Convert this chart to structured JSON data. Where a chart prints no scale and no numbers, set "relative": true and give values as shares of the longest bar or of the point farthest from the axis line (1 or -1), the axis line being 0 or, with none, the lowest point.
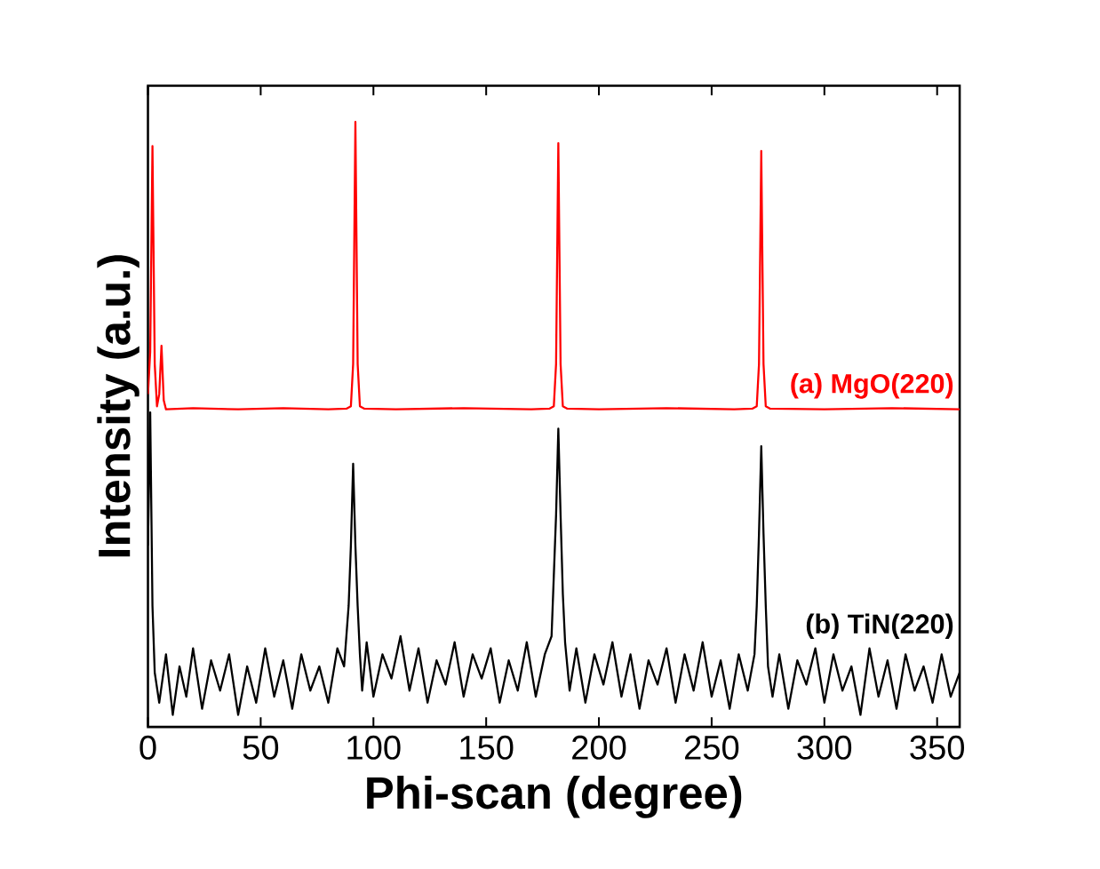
{
  "chart_data": {
    "type": "line",
    "relative": true,
    "xlabel": "Phi-scan (degree)",
    "ylabel": "Intensity (a.u.)",
    "xlim": [
      0,
      360
    ],
    "xticks": [
      0,
      50,
      100,
      150,
      200,
      250,
      300,
      350
    ],
    "tick_labels": "x",
    "marker": "none",
    "line_style": "solid",
    "series": [
      {
        "name": "(a) MgO(220)",
        "color": "#ff0000",
        "x": [
          0,
          1,
          2,
          3,
          4,
          5,
          6,
          7,
          8,
          20,
          40,
          60,
          80,
          88,
          90,
          91,
          92,
          93,
          94,
          96,
          110,
          140,
          170,
          178,
          180,
          181,
          182,
          183,
          184,
          186,
          200,
          230,
          260,
          268,
          270,
          271,
          272,
          273,
          274,
          276,
          300,
          330,
          360
        ],
        "values": [
          0.55,
          0.62,
          0.96,
          0.6,
          0.53,
          0.55,
          0.63,
          0.54,
          0.525,
          0.527,
          0.525,
          0.527,
          0.525,
          0.526,
          0.53,
          0.6,
          1.0,
          0.6,
          0.53,
          0.526,
          0.525,
          0.527,
          0.525,
          0.526,
          0.53,
          0.6,
          0.965,
          0.6,
          0.53,
          0.526,
          0.525,
          0.527,
          0.525,
          0.526,
          0.53,
          0.6,
          0.952,
          0.6,
          0.53,
          0.526,
          0.525,
          0.527,
          0.525
        ]
      },
      {
        "name": "(b) TiN(220)",
        "color": "#000000",
        "x": [
          0,
          1,
          2,
          3,
          5,
          8,
          11,
          14,
          17,
          20,
          24,
          28,
          32,
          36,
          40,
          44,
          48,
          52,
          56,
          60,
          64,
          68,
          72,
          76,
          80,
          84,
          87,
          89,
          90,
          91,
          92,
          93,
          94,
          95,
          97,
          100,
          104,
          108,
          112,
          116,
          120,
          124,
          128,
          132,
          136,
          140,
          144,
          148,
          152,
          156,
          160,
          164,
          168,
          172,
          176,
          179,
          180,
          181,
          182,
          183,
          184,
          185,
          187,
          190,
          194,
          198,
          202,
          206,
          210,
          214,
          218,
          222,
          226,
          230,
          234,
          238,
          242,
          246,
          250,
          254,
          258,
          262,
          266,
          269,
          270,
          271,
          272,
          273,
          274,
          275,
          277,
          280,
          284,
          288,
          292,
          296,
          300,
          304,
          308,
          312,
          316,
          320,
          324,
          328,
          332,
          336,
          340,
          344,
          348,
          352,
          356,
          360
        ],
        "values": [
          0.3,
          0.52,
          0.2,
          0.09,
          0.04,
          0.12,
          0.02,
          0.1,
          0.05,
          0.13,
          0.03,
          0.11,
          0.06,
          0.12,
          0.02,
          0.1,
          0.04,
          0.13,
          0.05,
          0.11,
          0.03,
          0.12,
          0.06,
          0.1,
          0.04,
          0.13,
          0.1,
          0.2,
          0.3,
          0.435,
          0.3,
          0.2,
          0.12,
          0.06,
          0.14,
          0.05,
          0.12,
          0.08,
          0.15,
          0.06,
          0.13,
          0.04,
          0.11,
          0.07,
          0.14,
          0.05,
          0.12,
          0.08,
          0.13,
          0.04,
          0.11,
          0.06,
          0.14,
          0.05,
          0.12,
          0.15,
          0.25,
          0.35,
          0.493,
          0.35,
          0.22,
          0.14,
          0.06,
          0.13,
          0.04,
          0.12,
          0.07,
          0.14,
          0.05,
          0.12,
          0.03,
          0.11,
          0.07,
          0.13,
          0.04,
          0.12,
          0.06,
          0.14,
          0.05,
          0.11,
          0.03,
          0.12,
          0.06,
          0.12,
          0.2,
          0.32,
          0.464,
          0.32,
          0.2,
          0.1,
          0.05,
          0.12,
          0.03,
          0.11,
          0.07,
          0.13,
          0.04,
          0.12,
          0.06,
          0.1,
          0.02,
          0.13,
          0.05,
          0.11,
          0.03,
          0.12,
          0.06,
          0.1,
          0.04,
          0.12,
          0.05,
          0.09
        ]
      }
    ]
  }
}
